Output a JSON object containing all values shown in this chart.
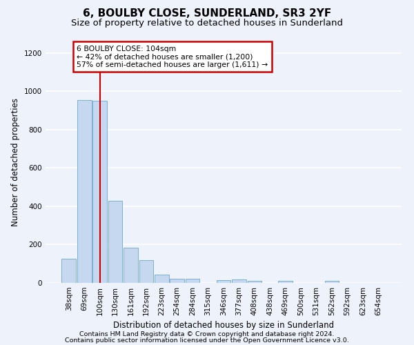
{
  "title": "6, BOULBY CLOSE, SUNDERLAND, SR3 2YF",
  "subtitle": "Size of property relative to detached houses in Sunderland",
  "xlabel": "Distribution of detached houses by size in Sunderland",
  "ylabel": "Number of detached properties",
  "categories": [
    "38sqm",
    "69sqm",
    "100sqm",
    "130sqm",
    "161sqm",
    "192sqm",
    "223sqm",
    "254sqm",
    "284sqm",
    "315sqm",
    "346sqm",
    "377sqm",
    "408sqm",
    "438sqm",
    "469sqm",
    "500sqm",
    "531sqm",
    "562sqm",
    "592sqm",
    "623sqm",
    "654sqm"
  ],
  "values": [
    125,
    955,
    950,
    428,
    183,
    120,
    44,
    20,
    20,
    0,
    15,
    18,
    12,
    0,
    10,
    0,
    0,
    10,
    0,
    0,
    0
  ],
  "bar_color": "#c5d8f0",
  "bar_edge_color": "#7bafd4",
  "ref_line_index": 2,
  "ref_line_color": "#cc0000",
  "ylim": [
    0,
    1260
  ],
  "yticks": [
    0,
    200,
    400,
    600,
    800,
    1000,
    1200
  ],
  "annotation_text": "6 BOULBY CLOSE: 104sqm\n← 42% of detached houses are smaller (1,200)\n57% of semi-detached houses are larger (1,611) →",
  "annotation_box_color": "#ffffff",
  "annotation_box_edge_color": "#cc0000",
  "footer_line1": "Contains HM Land Registry data © Crown copyright and database right 2024.",
  "footer_line2": "Contains public sector information licensed under the Open Government Licence v3.0.",
  "background_color": "#eef2fb",
  "grid_color": "#ffffff",
  "title_fontsize": 11,
  "subtitle_fontsize": 9.5,
  "axis_label_fontsize": 8.5,
  "tick_fontsize": 7.5,
  "footer_fontsize": 6.8,
  "ann_fontsize": 7.8
}
